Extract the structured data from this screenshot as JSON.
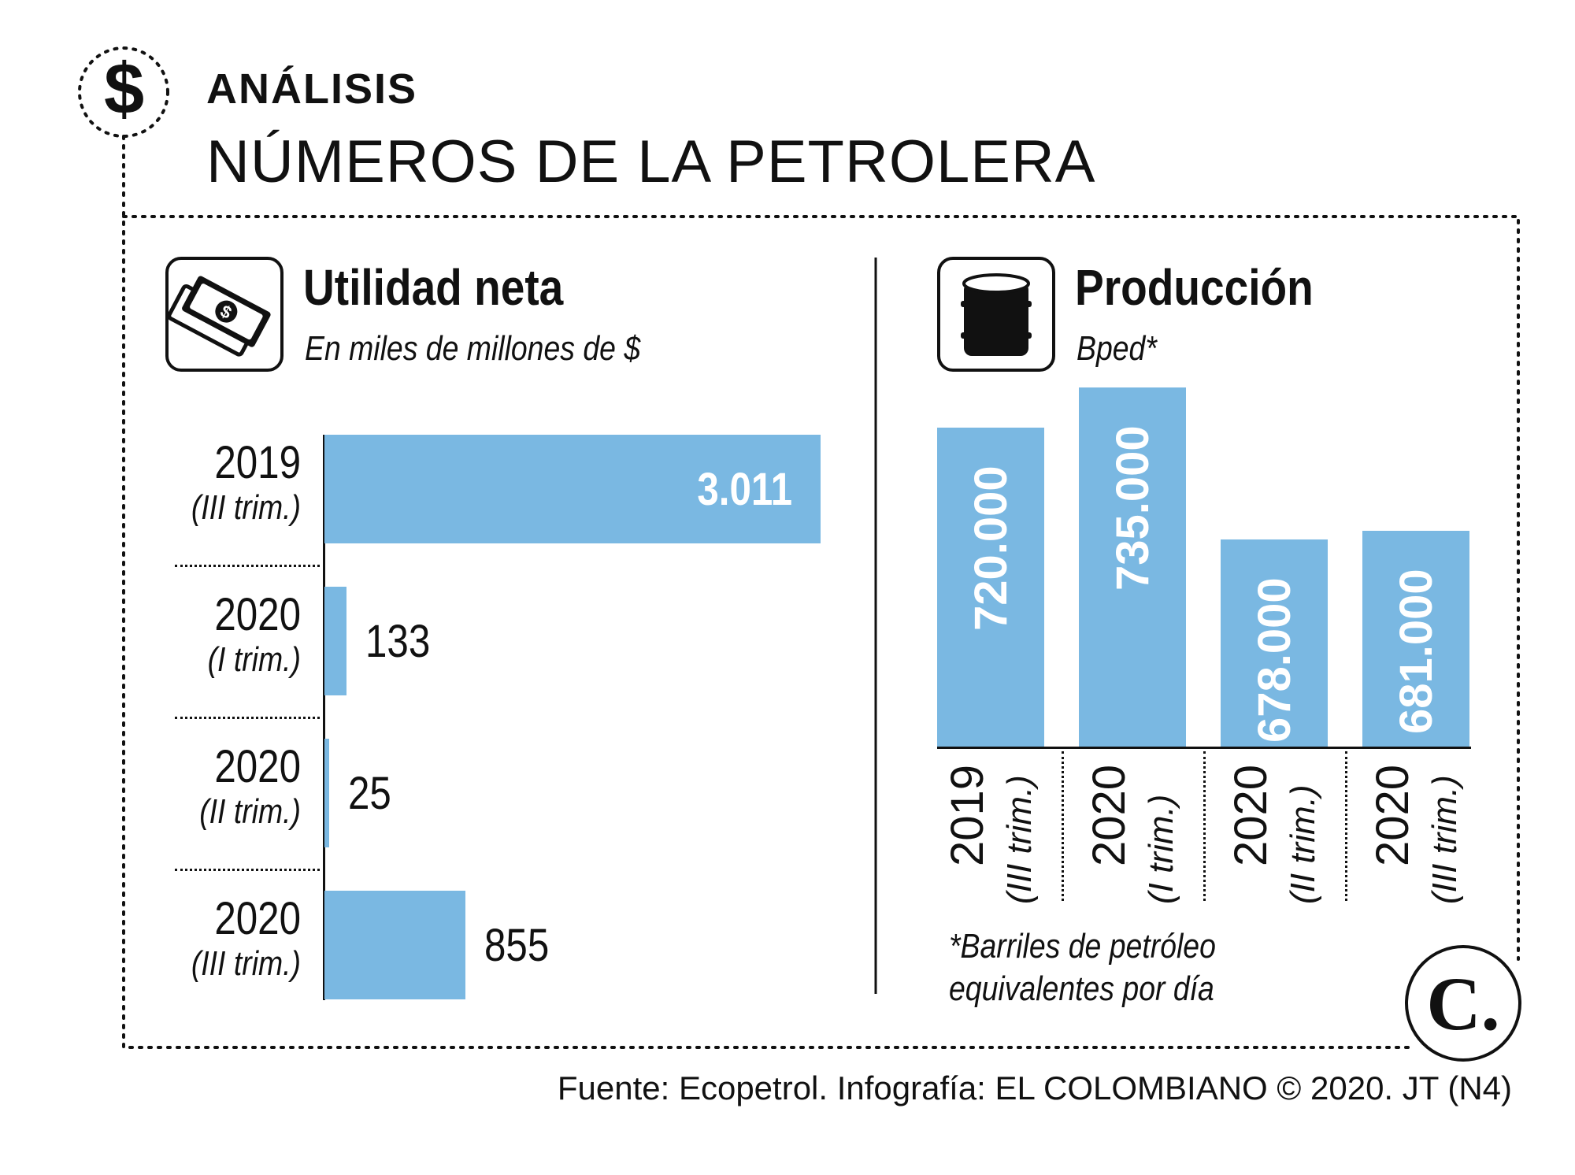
{
  "header": {
    "kicker": "ANÁLISIS",
    "title": "NÚMEROS DE LA PETROLERA",
    "dollar_icon": "dollar-icon"
  },
  "colors": {
    "bar": "#7ab8e2",
    "text": "#111111",
    "white": "#ffffff"
  },
  "left_panel": {
    "title": "Utilidad neta",
    "subtitle": "En miles de millones de $",
    "icon": "money-icon"
  },
  "right_panel": {
    "title": "Producción",
    "subtitle": "Bped*",
    "icon": "barrel-icon",
    "footnote_line1": "*Barriles de petróleo",
    "footnote_line2": "equivalentes por día"
  },
  "chart_data": [
    {
      "type": "bar",
      "orientation": "horizontal",
      "title": "Utilidad neta",
      "subtitle": "En miles de millones de $",
      "categories": [
        {
          "year": "2019",
          "period": "(III trim.)"
        },
        {
          "year": "2020",
          "period": "(I trim.)"
        },
        {
          "year": "2020",
          "period": "(II trim.)"
        },
        {
          "year": "2020",
          "period": "(III trim.)"
        }
      ],
      "values": [
        3011,
        133,
        25,
        855
      ],
      "value_labels": [
        "3.011",
        "133",
        "25",
        "855"
      ],
      "xlim": [
        0,
        3011
      ]
    },
    {
      "type": "bar",
      "orientation": "vertical",
      "title": "Producción",
      "subtitle": "Bped*",
      "categories": [
        {
          "year": "2019",
          "period": "(III trim.)"
        },
        {
          "year": "2020",
          "period": "(I trim.)"
        },
        {
          "year": "2020",
          "period": "(II trim.)"
        },
        {
          "year": "2020",
          "period": "(III trim.)"
        }
      ],
      "values": [
        720000,
        735000,
        678000,
        681000
      ],
      "value_labels": [
        "720.000",
        "735.000",
        "678.000",
        "681.000"
      ]
    }
  ],
  "footer": {
    "source": "Fuente: Ecopetrol. Infografía: EL COLOMBIANO © 2020. JT (N4)",
    "logo_letter": "C."
  }
}
